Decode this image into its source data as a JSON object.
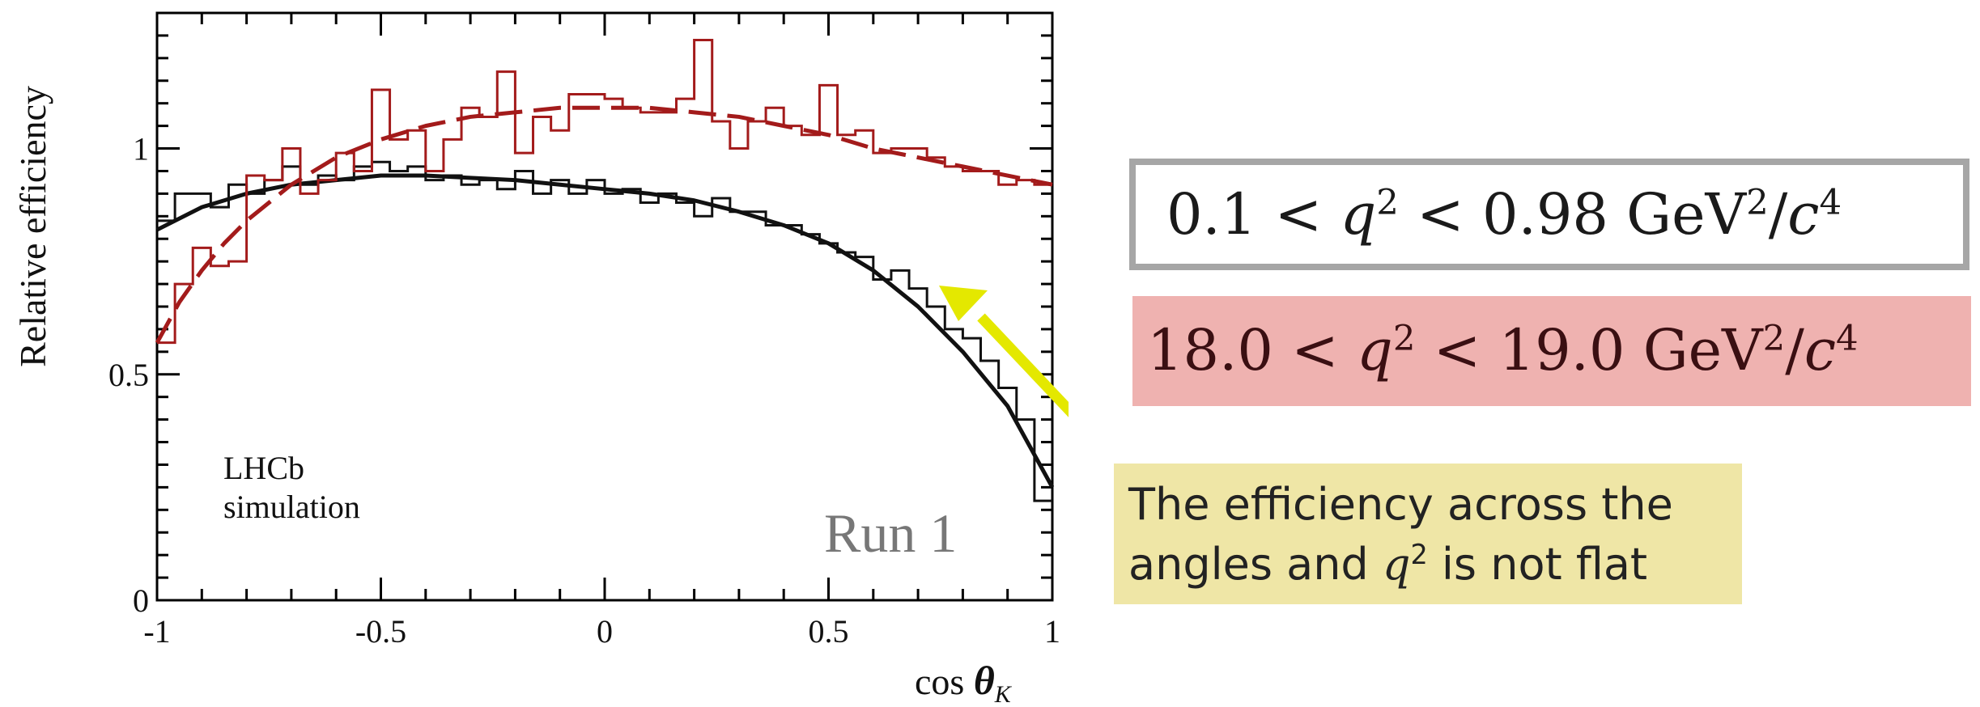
{
  "chart_data": {
    "type": "line",
    "title": "",
    "xlabel_text": "cos ",
    "xlabel_symbol": "θ",
    "xlabel_sub": "K",
    "ylabel": "Relative efficiency",
    "xlim": [
      -1,
      1
    ],
    "ylim": [
      0,
      1.3
    ],
    "x_ticks": [
      -1,
      -0.5,
      0,
      0.5,
      1
    ],
    "x_tick_labels": [
      "-1",
      "-0.5",
      "0",
      "0.5",
      "1"
    ],
    "y_ticks": [
      0,
      0.5,
      1
    ],
    "y_tick_labels": [
      "0",
      "0.5",
      "1"
    ],
    "grid": false,
    "annotations": {
      "experiment": "LHCb",
      "sample": "simulation",
      "run": "Run 1"
    },
    "bin_edges": [
      -1,
      -0.96,
      -0.92,
      -0.88,
      -0.84,
      -0.8,
      -0.76,
      -0.72,
      -0.68,
      -0.64,
      -0.6,
      -0.56,
      -0.52,
      -0.48,
      -0.44,
      -0.4,
      -0.36,
      -0.32,
      -0.28,
      -0.24,
      -0.2,
      -0.16,
      -0.12,
      -0.08,
      -0.04,
      0,
      0.04,
      0.08,
      0.12,
      0.16,
      0.2,
      0.24,
      0.28,
      0.32,
      0.36,
      0.4,
      0.44,
      0.48,
      0.52,
      0.56,
      0.6,
      0.64,
      0.68,
      0.72,
      0.76,
      0.8,
      0.84,
      0.88,
      0.92,
      0.96,
      1
    ],
    "series": [
      {
        "label": "0.1 < q² < 0.98 GeV²/c⁴",
        "color": "#111111",
        "dash": false,
        "hist": [
          0.84,
          0.9,
          0.9,
          0.87,
          0.92,
          0.9,
          0.93,
          0.96,
          0.92,
          0.94,
          0.93,
          0.96,
          0.97,
          0.95,
          0.96,
          0.93,
          0.94,
          0.92,
          0.93,
          0.91,
          0.95,
          0.9,
          0.93,
          0.9,
          0.93,
          0.9,
          0.91,
          0.88,
          0.9,
          0.88,
          0.85,
          0.89,
          0.86,
          0.86,
          0.83,
          0.83,
          0.81,
          0.79,
          0.77,
          0.76,
          0.71,
          0.73,
          0.69,
          0.65,
          0.6,
          0.58,
          0.53,
          0.47,
          0.4,
          0.22
        ],
        "fit_x": [
          -1,
          -0.9,
          -0.8,
          -0.7,
          -0.6,
          -0.5,
          -0.4,
          -0.3,
          -0.2,
          -0.1,
          0,
          0.1,
          0.2,
          0.3,
          0.4,
          0.5,
          0.6,
          0.7,
          0.8,
          0.9,
          0.95,
          1
        ],
        "fit_y": [
          0.82,
          0.87,
          0.9,
          0.92,
          0.93,
          0.94,
          0.94,
          0.935,
          0.93,
          0.92,
          0.91,
          0.9,
          0.885,
          0.86,
          0.83,
          0.79,
          0.73,
          0.65,
          0.55,
          0.43,
          0.34,
          0.25
        ]
      },
      {
        "label": "18.0 < q² < 19.0 GeV²/c⁴",
        "color": "#a31b1b",
        "dash": true,
        "hist": [
          0.57,
          0.7,
          0.78,
          0.74,
          0.75,
          0.94,
          0.93,
          1.0,
          0.9,
          0.93,
          0.99,
          0.95,
          1.13,
          1.02,
          1.04,
          0.95,
          1.02,
          1.09,
          1.07,
          1.17,
          0.99,
          1.07,
          1.04,
          1.12,
          1.12,
          1.11,
          1.09,
          1.08,
          1.08,
          1.11,
          1.24,
          1.06,
          1.0,
          1.06,
          1.09,
          1.05,
          1.03,
          1.14,
          1.03,
          1.04,
          0.99,
          1.0,
          1.0,
          0.98,
          0.96,
          0.95,
          0.95,
          0.92,
          0.93,
          0.92
        ],
        "fit_x": [
          -1,
          -0.95,
          -0.9,
          -0.85,
          -0.8,
          -0.7,
          -0.6,
          -0.5,
          -0.4,
          -0.3,
          -0.2,
          -0.1,
          0,
          0.1,
          0.2,
          0.3,
          0.4,
          0.5,
          0.6,
          0.7,
          0.8,
          0.9,
          1
        ],
        "fit_y": [
          0.57,
          0.66,
          0.73,
          0.79,
          0.84,
          0.92,
          0.98,
          1.02,
          1.05,
          1.07,
          1.08,
          1.09,
          1.09,
          1.09,
          1.08,
          1.07,
          1.05,
          1.03,
          1.0,
          0.98,
          0.96,
          0.94,
          0.92
        ]
      }
    ]
  },
  "legend": {
    "low_q2": {
      "lhs": "0.1 < ",
      "var": "q",
      "pow": "2",
      "mid": " < 0.98 GeV",
      "pow2": "2",
      "slash": "/",
      "cvar": "c",
      "pow4": "4"
    },
    "high_q2": {
      "lhs": "18.0 < ",
      "var": "q",
      "pow": "2",
      "mid": " < 19.0 GeV",
      "pow2": "2",
      "slash": "/",
      "cvar": "c",
      "pow4": "4"
    }
  },
  "note": {
    "line1": "The efficiency across the",
    "line2_pre": "angles and ",
    "var": "q",
    "pow": "2",
    "line2_post": " is not flat",
    "arrow_color": "#e4e800"
  }
}
